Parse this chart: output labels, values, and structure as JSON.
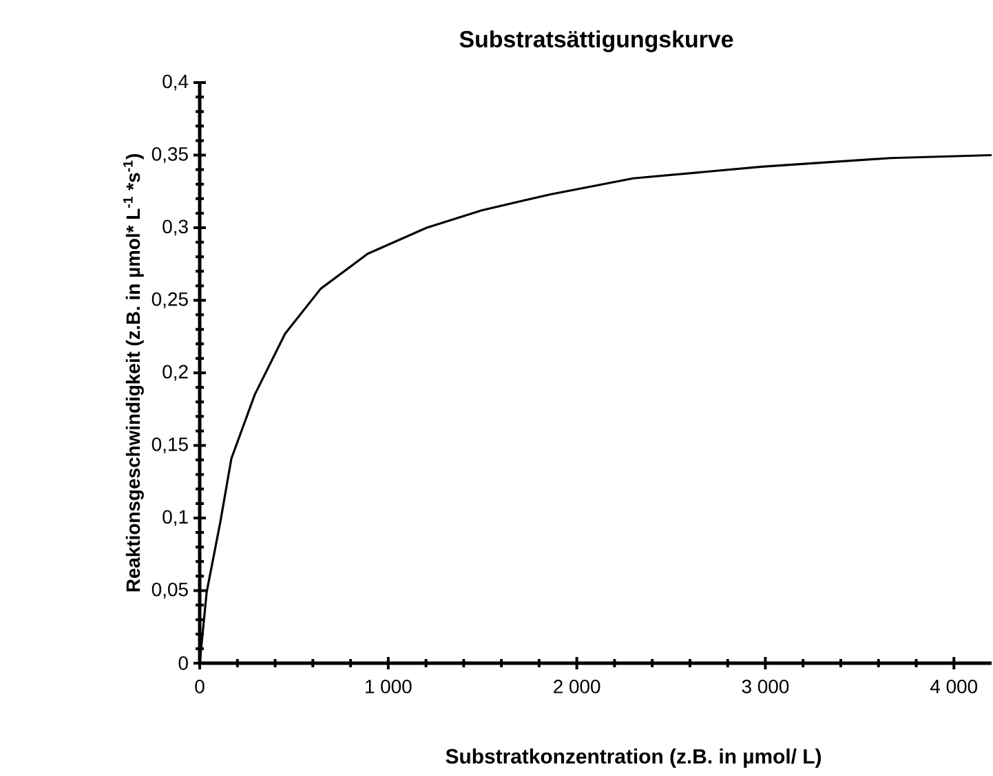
{
  "chart_data": {
    "type": "line",
    "title": "Substratsättigungskurve",
    "xlabel": "Substratkonzentration (z.B. in µmol/ L)",
    "ylabel": "Reaktionsgeschwindigkeit (z.B. in µmol* L$^{-1}$ *s$^{-1}$)",
    "x": [
      0,
      37,
      109,
      168,
      292,
      453,
      642,
      890,
      1204,
      1496,
      1861,
      2299,
      2978,
      3664,
      4200
    ],
    "series": [
      {
        "color": "#000000",
        "values": [
          0,
          0.049,
          0.097,
          0.141,
          0.185,
          0.227,
          0.258,
          0.282,
          0.3,
          0.312,
          0.323,
          0.334,
          0.342,
          0.348,
          0.35
        ]
      }
    ],
    "xlim": [
      0,
      4200
    ],
    "ylim": [
      0,
      0.4
    ],
    "xticks": [
      {
        "value": 0,
        "label": "0"
      },
      {
        "value": 1000,
        "label": "1 000"
      },
      {
        "value": 2000,
        "label": "2 000"
      },
      {
        "value": 3000,
        "label": "3 000"
      },
      {
        "value": 4000,
        "label": "4 000"
      }
    ],
    "yticks": [
      {
        "value": 0,
        "label": "0"
      },
      {
        "value": 0.05,
        "label": "0,05"
      },
      {
        "value": 0.1,
        "label": "0,1"
      },
      {
        "value": 0.15,
        "label": "0,15"
      },
      {
        "value": 0.2,
        "label": "0,2"
      },
      {
        "value": 0.25,
        "label": "0,25"
      },
      {
        "value": 0.3,
        "label": "0,3"
      },
      {
        "value": 0.35,
        "label": "0,35"
      },
      {
        "value": 0.4,
        "label": "0,4"
      }
    ],
    "grid": false,
    "marker": "none",
    "line_style": "solid"
  }
}
